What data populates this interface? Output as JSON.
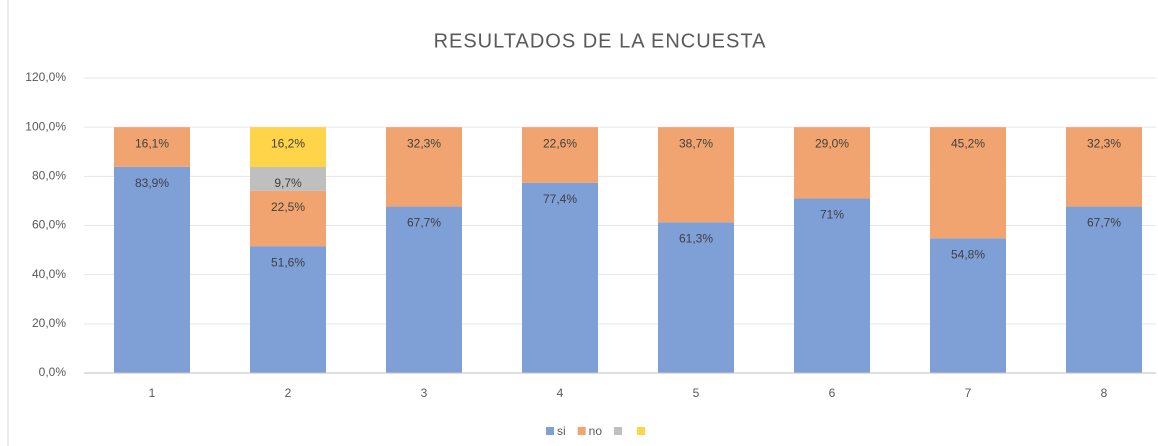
{
  "chart_data": {
    "type": "stacked_bar",
    "title": "RESULTADOS DE LA ENCUESTA",
    "categories": [
      "1",
      "2",
      "3",
      "4",
      "5",
      "6",
      "7",
      "8"
    ],
    "series": [
      {
        "name": "si",
        "color": "#7f9fd7",
        "values": [
          83.9,
          51.6,
          67.7,
          77.4,
          61.3,
          71,
          54.8,
          67.7
        ],
        "value_labels": [
          "83,9%",
          "51,6%",
          "67,7%",
          "77,4%",
          "61,3%",
          "71%",
          "54,8%",
          "67,7%"
        ]
      },
      {
        "name": "no",
        "color": "#f1a46f",
        "values": [
          16.1,
          22.5,
          32.3,
          22.6,
          38.7,
          29.0,
          45.2,
          32.3
        ],
        "value_labels": [
          "16,1%",
          "22,5%",
          "32,3%",
          "22,6%",
          "38,7%",
          "29,0%",
          "45,2%",
          "32,3%"
        ]
      },
      {
        "name": null,
        "color": "#bfbfbf",
        "values": [
          null,
          9.7,
          null,
          null,
          null,
          null,
          null,
          null
        ],
        "value_labels": [
          null,
          "9,7%",
          null,
          null,
          null,
          null,
          null,
          null
        ]
      },
      {
        "name": null,
        "color": "#ffd449",
        "values": [
          null,
          16.2,
          null,
          null,
          null,
          null,
          null,
          null
        ],
        "value_labels": [
          null,
          "16,2%",
          null,
          null,
          null,
          null,
          null,
          null
        ]
      }
    ],
    "ylim": [
      0,
      120
    ],
    "yticks": [
      {
        "value": 0,
        "label": "0,0%"
      },
      {
        "value": 20,
        "label": "20,0%"
      },
      {
        "value": 40,
        "label": "40,0%"
      },
      {
        "value": 60,
        "label": "60,0%"
      },
      {
        "value": 80,
        "label": "80,0%"
      },
      {
        "value": 100,
        "label": "100,0%"
      },
      {
        "value": 120,
        "label": "120,0%"
      }
    ],
    "grid": true,
    "legend": "bottom"
  }
}
